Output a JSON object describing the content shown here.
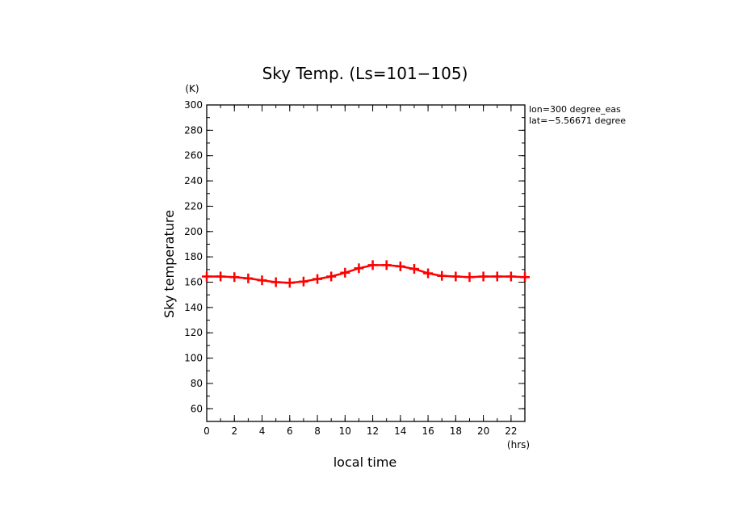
{
  "chart_data": {
    "type": "line",
    "title": "Sky Temp. (Ls=101−105)",
    "xlabel": "local time",
    "ylabel": "Sky temperature",
    "x_unit": "(hrs)",
    "y_unit": "(K)",
    "xlim": [
      0,
      23
    ],
    "ylim": [
      50,
      300
    ],
    "xticks": [
      0,
      2,
      4,
      6,
      8,
      10,
      12,
      14,
      16,
      18,
      20,
      22
    ],
    "yticks": [
      60,
      80,
      100,
      120,
      140,
      160,
      180,
      200,
      220,
      240,
      260,
      280,
      300
    ],
    "annotations": [
      "lon=300 degree_eas",
      "lat=−5.56671 degree"
    ],
    "series": [
      {
        "color": "#ff0000",
        "marker": "plus",
        "x": [
          0,
          1,
          2,
          3,
          4,
          5,
          6,
          7,
          8,
          9,
          10,
          11,
          12,
          13,
          14,
          15,
          16,
          17,
          18,
          19,
          20,
          21,
          22,
          23
        ],
        "y": [
          164.5,
          164.5,
          164,
          163,
          161.5,
          160,
          159.5,
          160.5,
          162.5,
          164.5,
          167.5,
          171,
          173.5,
          173.5,
          172.5,
          170.5,
          167,
          165,
          164.5,
          164,
          164.5,
          164.5,
          164.5,
          164
        ]
      }
    ]
  }
}
